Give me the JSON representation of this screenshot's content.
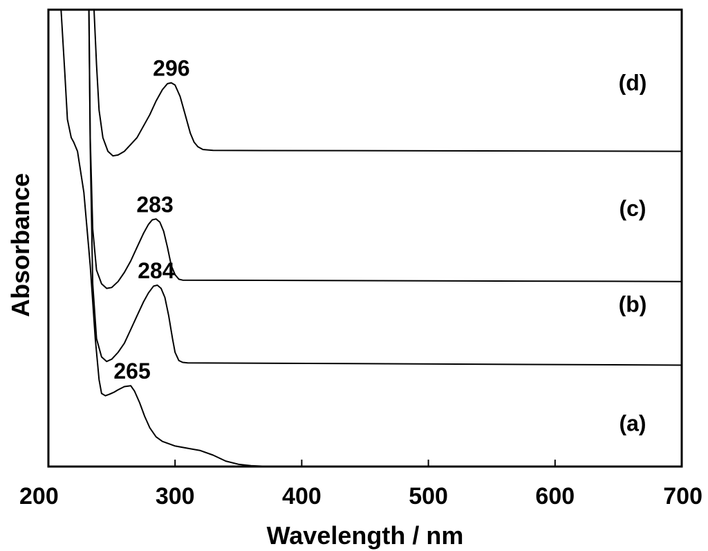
{
  "chart_data": {
    "type": "line",
    "title": "",
    "xlabel": "Wavelength / nm",
    "ylabel": "Absorbance",
    "xlim": [
      200,
      700
    ],
    "ylim": [
      0,
      1
    ],
    "x_ticks": [
      200,
      300,
      400,
      500,
      600,
      700
    ],
    "x_tick_labels": [
      "200",
      "300",
      "400",
      "500",
      "600",
      "700"
    ],
    "y_ticks_shown": false,
    "grid": false,
    "legend": "none",
    "series": [
      {
        "name": "(a)",
        "peak_label": "265",
        "peak_x": 265,
        "points": [
          [
            210,
            1.0
          ],
          [
            213,
            0.86
          ],
          [
            215,
            0.76
          ],
          [
            218,
            0.72
          ],
          [
            220,
            0.71
          ],
          [
            223,
            0.69
          ],
          [
            228,
            0.6
          ],
          [
            233,
            0.44
          ],
          [
            237,
            0.28
          ],
          [
            240,
            0.19
          ],
          [
            242,
            0.16
          ],
          [
            245,
            0.155
          ],
          [
            248,
            0.158
          ],
          [
            252,
            0.163
          ],
          [
            255,
            0.168
          ],
          [
            260,
            0.175
          ],
          [
            265,
            0.177
          ],
          [
            268,
            0.165
          ],
          [
            272,
            0.14
          ],
          [
            276,
            0.11
          ],
          [
            280,
            0.085
          ],
          [
            285,
            0.065
          ],
          [
            290,
            0.055
          ],
          [
            300,
            0.045
          ],
          [
            310,
            0.04
          ],
          [
            320,
            0.035
          ],
          [
            330,
            0.025
          ],
          [
            340,
            0.012
          ],
          [
            350,
            0.005
          ],
          [
            360,
            0.002
          ],
          [
            375,
            0.0
          ],
          [
            700,
            0.0
          ]
        ]
      },
      {
        "name": "(b)",
        "peak_label": "284",
        "peak_x": 284,
        "points": [
          [
            232,
            1.0
          ],
          [
            233,
            0.7
          ],
          [
            235,
            0.4
          ],
          [
            238,
            0.28
          ],
          [
            242,
            0.24
          ],
          [
            246,
            0.23
          ],
          [
            250,
            0.235
          ],
          [
            255,
            0.25
          ],
          [
            260,
            0.27
          ],
          [
            265,
            0.3
          ],
          [
            270,
            0.33
          ],
          [
            275,
            0.36
          ],
          [
            279,
            0.38
          ],
          [
            283,
            0.395
          ],
          [
            286,
            0.397
          ],
          [
            289,
            0.39
          ],
          [
            292,
            0.37
          ],
          [
            295,
            0.33
          ],
          [
            298,
            0.28
          ],
          [
            300,
            0.25
          ],
          [
            303,
            0.232
          ],
          [
            306,
            0.228
          ],
          [
            310,
            0.227
          ],
          [
            700,
            0.222
          ]
        ]
      },
      {
        "name": "(c)",
        "peak_label": "283",
        "peak_x": 283,
        "points": [
          [
            232,
            1.0
          ],
          [
            233,
            0.72
          ],
          [
            235,
            0.52
          ],
          [
            238,
            0.43
          ],
          [
            242,
            0.4
          ],
          [
            246,
            0.39
          ],
          [
            250,
            0.392
          ],
          [
            255,
            0.405
          ],
          [
            260,
            0.425
          ],
          [
            265,
            0.45
          ],
          [
            270,
            0.48
          ],
          [
            275,
            0.51
          ],
          [
            279,
            0.53
          ],
          [
            282,
            0.54
          ],
          [
            285,
            0.542
          ],
          [
            288,
            0.535
          ],
          [
            291,
            0.515
          ],
          [
            294,
            0.48
          ],
          [
            297,
            0.44
          ],
          [
            300,
            0.42
          ],
          [
            303,
            0.41
          ],
          [
            306,
            0.408
          ],
          [
            700,
            0.405
          ]
        ]
      },
      {
        "name": "(d)",
        "peak_label": "296",
        "peak_x": 296,
        "points": [
          [
            236,
            1.0
          ],
          [
            238,
            0.88
          ],
          [
            240,
            0.78
          ],
          [
            243,
            0.72
          ],
          [
            247,
            0.69
          ],
          [
            251,
            0.68
          ],
          [
            255,
            0.682
          ],
          [
            260,
            0.69
          ],
          [
            265,
            0.705
          ],
          [
            270,
            0.72
          ],
          [
            275,
            0.745
          ],
          [
            280,
            0.77
          ],
          [
            285,
            0.8
          ],
          [
            290,
            0.825
          ],
          [
            294,
            0.838
          ],
          [
            297,
            0.84
          ],
          [
            300,
            0.835
          ],
          [
            304,
            0.81
          ],
          [
            308,
            0.77
          ],
          [
            312,
            0.73
          ],
          [
            315,
            0.71
          ],
          [
            318,
            0.7
          ],
          [
            322,
            0.694
          ],
          [
            330,
            0.692
          ],
          [
            700,
            0.69
          ]
        ]
      }
    ]
  }
}
